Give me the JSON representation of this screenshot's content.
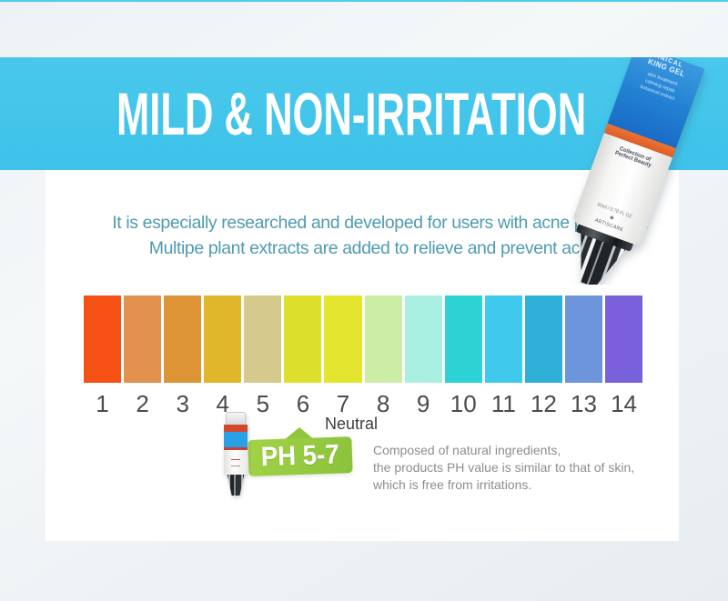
{
  "banner": {
    "title": "MILD & NON-IRRITATION",
    "bg_color": "#43C5EA"
  },
  "intro": {
    "line1": "It is especially researched and developed for users with acne problems.",
    "line2": "Multipe plant extracts are added to relieve and prevent acnes.",
    "color": "#4F9BB0"
  },
  "ph_scale": {
    "items": [
      {
        "value": "1",
        "color": "#F55114"
      },
      {
        "value": "2",
        "color": "#E2914E"
      },
      {
        "value": "3",
        "color": "#DC9434"
      },
      {
        "value": "4",
        "color": "#E0B72B"
      },
      {
        "value": "5",
        "color": "#D5CA8C"
      },
      {
        "value": "6",
        "color": "#DCDF2B"
      },
      {
        "value": "7",
        "color": "#E3E52F"
      },
      {
        "value": "8",
        "color": "#CBEDA5"
      },
      {
        "value": "9",
        "color": "#A9F0E2"
      },
      {
        "value": "10",
        "color": "#2DD2D5"
      },
      {
        "value": "11",
        "color": "#3FC9EC"
      },
      {
        "value": "12",
        "color": "#2FB0D9"
      },
      {
        "value": "13",
        "color": "#6C95DC"
      },
      {
        "value": "14",
        "color": "#7861DB"
      }
    ]
  },
  "annotation": {
    "neutral_label": "Neutral",
    "badge_label": "PH 5-7",
    "badge_color": "#93C83D",
    "desc_lines": [
      "Composed of natural ingredients,",
      "the products PH value is similar to that of skin,",
      "which is free from irritations."
    ]
  },
  "tube": {
    "label_line1": "ANICAL",
    "label_line2": "KING GEL",
    "label_small1": "skin treatment",
    "label_small2": "calming repair",
    "label_small3": "botanical extract",
    "body_line1": "Collection of",
    "body_line2": "Perfect Beauty",
    "volume": "50ml / 0.78 FL OZ",
    "logo_glyph": "❖",
    "brand": "ARTISCARE"
  }
}
